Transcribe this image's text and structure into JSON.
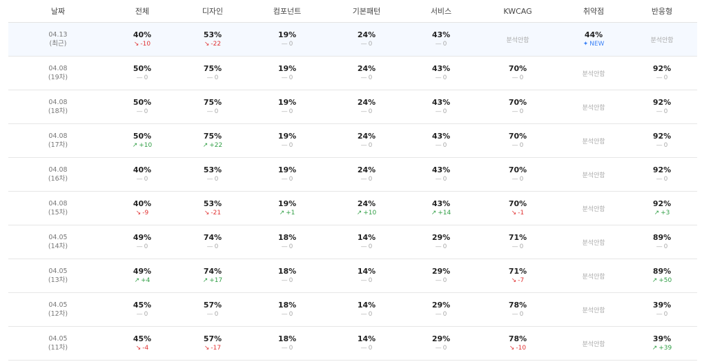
{
  "table": {
    "columns": [
      "날짜",
      "전체",
      "디자인",
      "컴포넌트",
      "기본패턴",
      "서비스",
      "KWCAG",
      "취약점",
      "반응형"
    ],
    "rows": [
      {
        "date": "04.13",
        "label": "(최근)",
        "cells": [
          {
            "value": "40%",
            "change": "-10"
          },
          {
            "value": "53%",
            "change": "-22"
          },
          {
            "value": "19%",
            "change": "0"
          },
          {
            "value": "24%",
            "change": "0"
          },
          {
            "value": "43%",
            "change": "0"
          },
          {
            "text": "분석안함"
          },
          {
            "value": "44%",
            "change": "NEW"
          },
          {
            "text": "분석안함"
          }
        ]
      },
      {
        "date": "04.08",
        "label": "(19차)",
        "cells": [
          {
            "value": "50%",
            "change": "0"
          },
          {
            "value": "75%",
            "change": "0"
          },
          {
            "value": "19%",
            "change": "0"
          },
          {
            "value": "24%",
            "change": "0"
          },
          {
            "value": "43%",
            "change": "0"
          },
          {
            "value": "70%",
            "change": "0"
          },
          {
            "text": "분석안함"
          },
          {
            "value": "92%",
            "change": "0"
          }
        ]
      },
      {
        "date": "04.08",
        "label": "(18차)",
        "cells": [
          {
            "value": "50%",
            "change": "0"
          },
          {
            "value": "75%",
            "change": "0"
          },
          {
            "value": "19%",
            "change": "0"
          },
          {
            "value": "24%",
            "change": "0"
          },
          {
            "value": "43%",
            "change": "0"
          },
          {
            "value": "70%",
            "change": "0"
          },
          {
            "text": "분석안함"
          },
          {
            "value": "92%",
            "change": "0"
          }
        ]
      },
      {
        "date": "04.08",
        "label": "(17차)",
        "cells": [
          {
            "value": "50%",
            "change": "+10"
          },
          {
            "value": "75%",
            "change": "+22"
          },
          {
            "value": "19%",
            "change": "0"
          },
          {
            "value": "24%",
            "change": "0"
          },
          {
            "value": "43%",
            "change": "0"
          },
          {
            "value": "70%",
            "change": "0"
          },
          {
            "text": "분석안함"
          },
          {
            "value": "92%",
            "change": "0"
          }
        ]
      },
      {
        "date": "04.08",
        "label": "(16차)",
        "cells": [
          {
            "value": "40%",
            "change": "0"
          },
          {
            "value": "53%",
            "change": "0"
          },
          {
            "value": "19%",
            "change": "0"
          },
          {
            "value": "24%",
            "change": "0"
          },
          {
            "value": "43%",
            "change": "0"
          },
          {
            "value": "70%",
            "change": "0"
          },
          {
            "text": "분석안함"
          },
          {
            "value": "92%",
            "change": "0"
          }
        ]
      },
      {
        "date": "04.08",
        "label": "(15차)",
        "cells": [
          {
            "value": "40%",
            "change": "-9"
          },
          {
            "value": "53%",
            "change": "-21"
          },
          {
            "value": "19%",
            "change": "+1"
          },
          {
            "value": "24%",
            "change": "+10"
          },
          {
            "value": "43%",
            "change": "+14"
          },
          {
            "value": "70%",
            "change": "-1"
          },
          {
            "text": "분석안함"
          },
          {
            "value": "92%",
            "change": "+3"
          }
        ]
      },
      {
        "date": "04.05",
        "label": "(14차)",
        "cells": [
          {
            "value": "49%",
            "change": "0"
          },
          {
            "value": "74%",
            "change": "0"
          },
          {
            "value": "18%",
            "change": "0"
          },
          {
            "value": "14%",
            "change": "0"
          },
          {
            "value": "29%",
            "change": "0"
          },
          {
            "value": "71%",
            "change": "0"
          },
          {
            "text": "분석안함"
          },
          {
            "value": "89%",
            "change": "0"
          }
        ]
      },
      {
        "date": "04.05",
        "label": "(13차)",
        "cells": [
          {
            "value": "49%",
            "change": "+4"
          },
          {
            "value": "74%",
            "change": "+17"
          },
          {
            "value": "18%",
            "change": "0"
          },
          {
            "value": "14%",
            "change": "0"
          },
          {
            "value": "29%",
            "change": "0"
          },
          {
            "value": "71%",
            "change": "-7"
          },
          {
            "text": "분석안함"
          },
          {
            "value": "89%",
            "change": "+50"
          }
        ]
      },
      {
        "date": "04.05",
        "label": "(12차)",
        "cells": [
          {
            "value": "45%",
            "change": "0"
          },
          {
            "value": "57%",
            "change": "0"
          },
          {
            "value": "18%",
            "change": "0"
          },
          {
            "value": "14%",
            "change": "0"
          },
          {
            "value": "29%",
            "change": "0"
          },
          {
            "value": "78%",
            "change": "0"
          },
          {
            "text": "분석안함"
          },
          {
            "value": "39%",
            "change": "0"
          }
        ]
      },
      {
        "date": "04.05",
        "label": "(11차)",
        "cells": [
          {
            "value": "45%",
            "change": "-4"
          },
          {
            "value": "57%",
            "change": "-17"
          },
          {
            "value": "18%",
            "change": "0"
          },
          {
            "value": "14%",
            "change": "0"
          },
          {
            "value": "29%",
            "change": "0"
          },
          {
            "value": "78%",
            "change": "-10"
          },
          {
            "text": "분석안함"
          },
          {
            "value": "39%",
            "change": "+39"
          }
        ]
      }
    ]
  }
}
